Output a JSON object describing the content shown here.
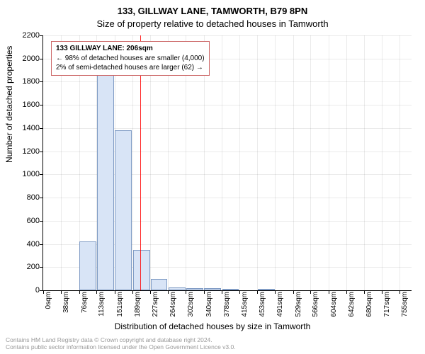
{
  "title_main": "133, GILLWAY LANE, TAMWORTH, B79 8PN",
  "title_sub": "Size of property relative to detached houses in Tamworth",
  "ylabel": "Number of detached properties",
  "xlabel": "Distribution of detached houses by size in Tamworth",
  "infobox": {
    "line1": "133 GILLWAY LANE: 206sqm",
    "line2": "← 98% of detached houses are smaller (4,000)",
    "line3": "2% of semi-detached houses are larger (62) →"
  },
  "footer1": "Contains HM Land Registry data © Crown copyright and database right 2024.",
  "footer2": "Contains public sector information licensed under the Open Government Licence v3.0.",
  "chart": {
    "type": "bar",
    "bar_fill": "#d8e4f6",
    "bar_stroke": "#7f9bc4",
    "bar_width_ratio": 0.95,
    "background_color": "#ffffff",
    "grid_color": "#000000",
    "grid_opacity": 0.08,
    "reference_line_color": "#ff0000",
    "reference_x": 206,
    "x_categories": [
      "0sqm",
      "38sqm",
      "76sqm",
      "113sqm",
      "151sqm",
      "189sqm",
      "227sqm",
      "264sqm",
      "302sqm",
      "340sqm",
      "378sqm",
      "415sqm",
      "453sqm",
      "491sqm",
      "529sqm",
      "566sqm",
      "604sqm",
      "642sqm",
      "680sqm",
      "717sqm",
      "755sqm"
    ],
    "x_positions": [
      0,
      38,
      76,
      113,
      151,
      189,
      227,
      264,
      302,
      340,
      378,
      415,
      453,
      491,
      529,
      566,
      604,
      642,
      680,
      717,
      755
    ],
    "values": [
      0,
      0,
      420,
      1860,
      1380,
      350,
      100,
      25,
      20,
      20,
      15,
      0,
      5,
      0,
      0,
      0,
      0,
      0,
      0,
      0,
      0
    ],
    "ylim": [
      0,
      2200
    ],
    "yticks": [
      0,
      200,
      400,
      600,
      800,
      1000,
      1200,
      1400,
      1600,
      1800,
      2000,
      2200
    ],
    "xlim": [
      0,
      780
    ],
    "title_fontsize": 13,
    "label_fontsize": 12,
    "tick_fontsize": 11
  }
}
